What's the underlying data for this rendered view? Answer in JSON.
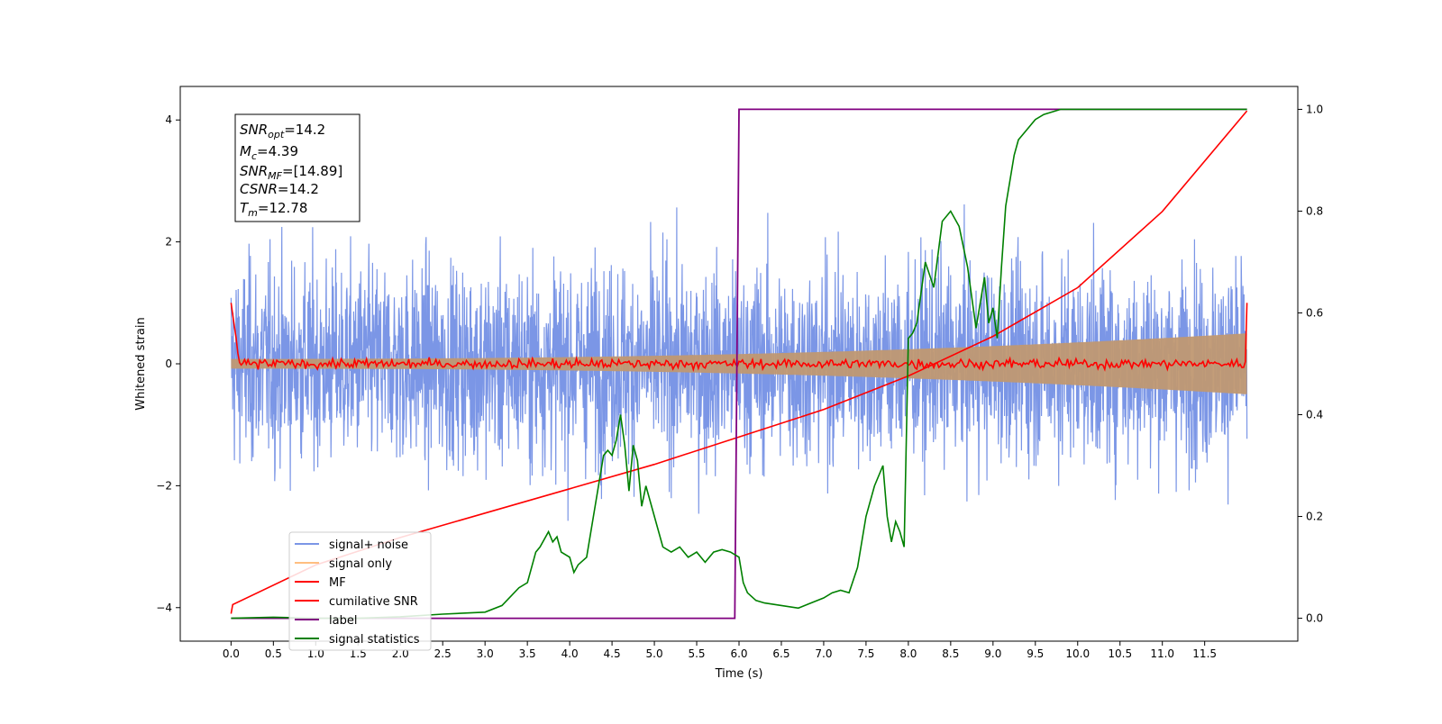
{
  "chart_data": {
    "type": "line",
    "xlabel": "Time (s)",
    "ylabel": "Whitened strain",
    "xlim": [
      -0.6,
      12.6
    ],
    "ylim": [
      -4.55,
      4.55
    ],
    "y2lim": [
      -0.045,
      1.045
    ],
    "x_ticks": [
      "0.0",
      "0.5",
      "1.0",
      "1.5",
      "2.0",
      "2.5",
      "3.0",
      "3.5",
      "4.0",
      "4.5",
      "5.0",
      "5.5",
      "6.0",
      "6.5",
      "7.0",
      "7.5",
      "8.0",
      "8.5",
      "9.0",
      "9.5",
      "10.0",
      "10.5",
      "11.0",
      "11.5"
    ],
    "y_ticks": [
      "−4",
      "−2",
      "0",
      "2",
      "4"
    ],
    "y2_ticks": [
      "0.0",
      "0.2",
      "0.4",
      "0.6",
      "0.8",
      "1.0"
    ],
    "grid": false,
    "legend_position": "lower-left",
    "annotation": {
      "snr_opt": {
        "sym": "SNR",
        "sub": "opt",
        "value": "=14.2"
      },
      "mc": {
        "sym": "M",
        "sub": "c",
        "value": "=4.39"
      },
      "snr_mf": {
        "sym": "SNR",
        "sub": "MF",
        "value": "=[14.89]"
      },
      "csnr": {
        "sym": "CSNR",
        "value": "=14.2"
      },
      "tm": {
        "sym": "T",
        "sub": "m",
        "value": "=12.78"
      }
    },
    "series": [
      {
        "name": "signal+ noise",
        "color": "#7b96e6",
        "axis": "left",
        "description": "noisy whitened strain, amplitude about ±3, 0–12 s"
      },
      {
        "name": "signal only",
        "color": "#ffbe80",
        "axis": "left",
        "envelope_start": 0.08,
        "envelope_end": 0.5
      },
      {
        "name": "MF",
        "color": "#ff0000",
        "axis": "left",
        "start": 1.0,
        "end": 1.0,
        "baseline": 0.0
      },
      {
        "name": "cumilative SNR",
        "color": "#ff0000",
        "axis": "left",
        "x": [
          0,
          0.02,
          1,
          2,
          3,
          4,
          5,
          6,
          7,
          8,
          9,
          10,
          11,
          12
        ],
        "y": [
          -4.1,
          -3.95,
          -3.3,
          -2.85,
          -2.45,
          -2.05,
          -1.65,
          -1.2,
          -0.75,
          -0.2,
          0.45,
          1.25,
          2.5,
          4.15
        ]
      },
      {
        "name": "label",
        "color": "#800080",
        "axis": "right",
        "x": [
          0,
          5.95,
          6.0,
          12
        ],
        "y": [
          0,
          0,
          1,
          1
        ]
      },
      {
        "name": "signal statistics",
        "color": "#008000",
        "axis": "right",
        "x": [
          0,
          0.5,
          1.0,
          1.5,
          2.0,
          2.5,
          3.0,
          3.2,
          3.4,
          3.5,
          3.6,
          3.65,
          3.75,
          3.8,
          3.85,
          3.9,
          4.0,
          4.05,
          4.1,
          4.2,
          4.3,
          4.4,
          4.45,
          4.5,
          4.55,
          4.6,
          4.65,
          4.7,
          4.75,
          4.8,
          4.85,
          4.9,
          5.0,
          5.1,
          5.2,
          5.3,
          5.4,
          5.5,
          5.6,
          5.7,
          5.8,
          5.9,
          6.0,
          6.05,
          6.1,
          6.2,
          6.3,
          6.5,
          6.7,
          6.85,
          7.0,
          7.1,
          7.2,
          7.3,
          7.4,
          7.45,
          7.5,
          7.6,
          7.7,
          7.75,
          7.8,
          7.85,
          7.9,
          7.95,
          8.0,
          8.05,
          8.1,
          8.2,
          8.3,
          8.4,
          8.5,
          8.6,
          8.7,
          8.8,
          8.9,
          8.95,
          9.0,
          9.05,
          9.1,
          9.15,
          9.2,
          9.25,
          9.3,
          9.4,
          9.5,
          9.6,
          9.8,
          10.0,
          10.5,
          11.0,
          11.5,
          12.0
        ],
        "y": [
          0.0,
          0.002,
          0.0,
          0.0,
          0.003,
          0.008,
          0.012,
          0.025,
          0.06,
          0.07,
          0.13,
          0.14,
          0.17,
          0.15,
          0.16,
          0.13,
          0.12,
          0.09,
          0.105,
          0.12,
          0.22,
          0.32,
          0.33,
          0.32,
          0.35,
          0.4,
          0.34,
          0.25,
          0.34,
          0.31,
          0.22,
          0.26,
          0.2,
          0.14,
          0.13,
          0.14,
          0.12,
          0.13,
          0.11,
          0.13,
          0.135,
          0.13,
          0.12,
          0.07,
          0.05,
          0.035,
          0.03,
          0.025,
          0.02,
          0.03,
          0.04,
          0.05,
          0.055,
          0.05,
          0.1,
          0.15,
          0.2,
          0.26,
          0.3,
          0.2,
          0.15,
          0.19,
          0.17,
          0.14,
          0.55,
          0.56,
          0.58,
          0.7,
          0.65,
          0.78,
          0.8,
          0.77,
          0.69,
          0.57,
          0.67,
          0.58,
          0.61,
          0.55,
          0.69,
          0.81,
          0.86,
          0.91,
          0.94,
          0.96,
          0.98,
          0.99,
          1.0,
          1.0,
          1.0,
          1.0,
          1.0,
          1.0
        ]
      }
    ]
  }
}
